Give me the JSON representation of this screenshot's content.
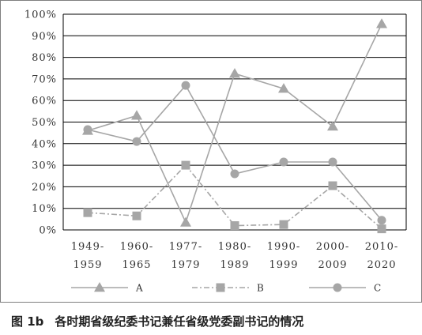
{
  "caption": {
    "figure_number": "图 1b",
    "text": "各时期省级纪委书记兼任省级党委副书记的情况"
  },
  "chart_data": {
    "type": "line",
    "title": "",
    "xlabel": "",
    "ylabel": "",
    "categories": [
      {
        "line1": "1949-",
        "line2": "1959"
      },
      {
        "line1": "1960-",
        "line2": "1965"
      },
      {
        "line1": "1977-",
        "line2": "1979"
      },
      {
        "line1": "1980-",
        "line2": "1989"
      },
      {
        "line1": "1990-",
        "line2": "1999"
      },
      {
        "line1": "2000-",
        "line2": "2009"
      },
      {
        "line1": "2010-",
        "line2": "2020"
      }
    ],
    "yticks": [
      "0%",
      "10%",
      "20%",
      "30%",
      "40%",
      "50%",
      "60%",
      "70%",
      "80%",
      "90%",
      "100%"
    ],
    "ylim": [
      0,
      100
    ],
    "grid": true,
    "legend_position": "bottom",
    "series": [
      {
        "name": "A",
        "marker": "triangle",
        "dash": "solid",
        "color": "#a6a6a6",
        "values": [
          46,
          53,
          3.5,
          72.5,
          65.5,
          48,
          95.5
        ]
      },
      {
        "name": "B",
        "marker": "square",
        "dash": "dash-dot",
        "color": "#a6a6a6",
        "values": [
          8,
          6.5,
          30,
          2,
          2.5,
          20.5,
          0.5
        ]
      },
      {
        "name": "C",
        "marker": "circle",
        "dash": "solid",
        "color": "#a6a6a6",
        "values": [
          46.5,
          41,
          67,
          26,
          31.5,
          31.5,
          4.5
        ]
      }
    ]
  }
}
